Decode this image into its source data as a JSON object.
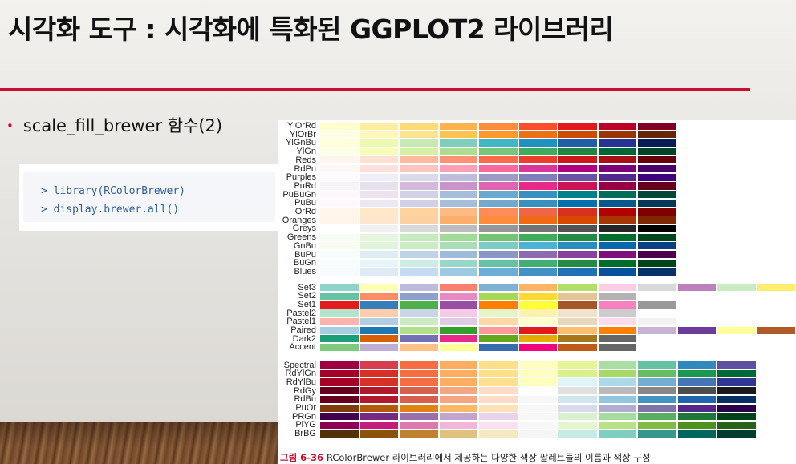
{
  "slide": {
    "title": "시각화 도구 : 시각화에 특화된 GGPLOT2 라이브러리",
    "bullet_marker": "•",
    "bullet_text": "scale_fill_brewer 함수(2)"
  },
  "code": {
    "lines": [
      "> library(RColorBrewer)",
      "> display.brewer.all()"
    ]
  },
  "caption": {
    "number": "그림 6-36",
    "text": "RColorBrewer 라이브러리에서 제공하는 다양한 색상 팔레트들의 이름과 색상 구성"
  },
  "palettes": [
    {
      "name": "YlOrRd",
      "colors": [
        "#ffffcc",
        "#ffeda0",
        "#fed976",
        "#feb24c",
        "#fd8d3c",
        "#fc4e2a",
        "#e31a1c",
        "#bd0026",
        "#800026"
      ]
    },
    {
      "name": "YlOrBr",
      "colors": [
        "#ffffe5",
        "#fff7bc",
        "#fee391",
        "#fec44f",
        "#fe9929",
        "#ec7014",
        "#cc4c02",
        "#993404",
        "#662506"
      ]
    },
    {
      "name": "YlGnBu",
      "colors": [
        "#ffffd9",
        "#edf8b1",
        "#c7e9b4",
        "#7fcdbb",
        "#41b6c4",
        "#1d91c0",
        "#225ea8",
        "#253494",
        "#081d58"
      ]
    },
    {
      "name": "YlGn",
      "colors": [
        "#ffffe5",
        "#f7fcb9",
        "#d9f0a3",
        "#addd8e",
        "#78c679",
        "#41ab5d",
        "#238443",
        "#006837",
        "#004529"
      ]
    },
    {
      "name": "Reds",
      "colors": [
        "#fff5f0",
        "#fee0d2",
        "#fcbba1",
        "#fc9272",
        "#fb6a4a",
        "#ef3b2c",
        "#cb181d",
        "#a50f15",
        "#67000d"
      ]
    },
    {
      "name": "RdPu",
      "colors": [
        "#fff7f3",
        "#fde0dd",
        "#fcc5c0",
        "#fa9fb5",
        "#f768a1",
        "#dd3497",
        "#ae017e",
        "#7a0177",
        "#49006a"
      ]
    },
    {
      "name": "Purples",
      "colors": [
        "#fcfbfd",
        "#efedf5",
        "#dadaeb",
        "#bcbddc",
        "#9e9ac8",
        "#807dba",
        "#6a51a3",
        "#54278f",
        "#3f007d"
      ]
    },
    {
      "name": "PuRd",
      "colors": [
        "#f7f4f9",
        "#e7e1ef",
        "#d4b9da",
        "#c994c7",
        "#df65b0",
        "#e7298a",
        "#ce1256",
        "#980043",
        "#67001f"
      ]
    },
    {
      "name": "PuBuGn",
      "colors": [
        "#fff7fb",
        "#ece2f0",
        "#d0d1e6",
        "#a6bddb",
        "#67a9cf",
        "#3690c0",
        "#02818a",
        "#016c59",
        "#014636"
      ]
    },
    {
      "name": "PuBu",
      "colors": [
        "#fff7fb",
        "#ece7f2",
        "#d0d1e6",
        "#a6bddb",
        "#74a9cf",
        "#3690c0",
        "#0570b0",
        "#045a8d",
        "#023858"
      ]
    },
    {
      "name": "OrRd",
      "colors": [
        "#fff7ec",
        "#fee8c8",
        "#fdd49e",
        "#fdbb84",
        "#fc8d59",
        "#ef6548",
        "#d7301f",
        "#b30000",
        "#7f0000"
      ]
    },
    {
      "name": "Oranges",
      "colors": [
        "#fff5eb",
        "#fee6ce",
        "#fdd0a2",
        "#fdae6b",
        "#fd8d3c",
        "#f16913",
        "#d94801",
        "#a63603",
        "#7f2704"
      ]
    },
    {
      "name": "Greys",
      "colors": [
        "#ffffff",
        "#f0f0f0",
        "#d9d9d9",
        "#bdbdbd",
        "#969696",
        "#737373",
        "#525252",
        "#252525",
        "#000000"
      ]
    },
    {
      "name": "Greens",
      "colors": [
        "#f7fcf5",
        "#e5f5e0",
        "#c7e9c0",
        "#a1d99b",
        "#74c476",
        "#41ab5d",
        "#238b45",
        "#006d2c",
        "#00441b"
      ]
    },
    {
      "name": "GnBu",
      "colors": [
        "#f7fcf0",
        "#e0f3db",
        "#ccebc5",
        "#a8ddb5",
        "#7bccc4",
        "#4eb3d3",
        "#2b8cbe",
        "#0868ac",
        "#084081"
      ]
    },
    {
      "name": "BuPu",
      "colors": [
        "#f7fcfd",
        "#e0ecf4",
        "#bfd3e6",
        "#9ebcda",
        "#8c96c6",
        "#8c6bb1",
        "#88419d",
        "#810f7c",
        "#4d004b"
      ]
    },
    {
      "name": "BuGn",
      "colors": [
        "#f7fcfd",
        "#e5f5f9",
        "#ccece6",
        "#99d8c9",
        "#66c2a4",
        "#41ae76",
        "#238b45",
        "#006d2c",
        "#00441b"
      ]
    },
    {
      "name": "Blues",
      "colors": [
        "#f7fbff",
        "#deebf7",
        "#c6dbef",
        "#9ecae1",
        "#6baed6",
        "#4292c6",
        "#2171b5",
        "#08519c",
        "#08306b"
      ]
    },
    {
      "name": "Set3",
      "colors": [
        "#8dd3c7",
        "#ffffb3",
        "#bebada",
        "#fb8072",
        "#80b1d3",
        "#fdb462",
        "#b3de69",
        "#fccde5",
        "#d9d9d9",
        "#bc80bd",
        "#ccebc5",
        "#ffed6f"
      ]
    },
    {
      "name": "Set2",
      "colors": [
        "#66c2a5",
        "#fc8d62",
        "#8da0cb",
        "#e78ac3",
        "#a6d854",
        "#ffd92f",
        "#e5c494",
        "#b3b3b3"
      ]
    },
    {
      "name": "Set1",
      "colors": [
        "#e41a1c",
        "#377eb8",
        "#4daf4a",
        "#984ea3",
        "#ff7f00",
        "#ffff33",
        "#a65628",
        "#f781bf",
        "#999999"
      ]
    },
    {
      "name": "Pastel2",
      "colors": [
        "#b3e2cd",
        "#fdcdac",
        "#cbd5e8",
        "#f4cae4",
        "#e6f5c9",
        "#fff2ae",
        "#f1e2cc",
        "#cccccc"
      ]
    },
    {
      "name": "Pastel1",
      "colors": [
        "#fbb4ae",
        "#b3cde3",
        "#ccebc5",
        "#decbe4",
        "#fed9a6",
        "#ffffcc",
        "#e5d8bd",
        "#fddaec",
        "#f2f2f2"
      ]
    },
    {
      "name": "Paired",
      "colors": [
        "#a6cee3",
        "#1f78b4",
        "#b2df8a",
        "#33a02c",
        "#fb9a99",
        "#e31a1c",
        "#fdbf6f",
        "#ff7f00",
        "#cab2d6",
        "#6a3d9a",
        "#ffff99",
        "#b15928"
      ]
    },
    {
      "name": "Dark2",
      "colors": [
        "#1b9e77",
        "#d95f02",
        "#7570b3",
        "#e7298a",
        "#66a61e",
        "#e6ab02",
        "#a6761d",
        "#666666"
      ]
    },
    {
      "name": "Accent",
      "colors": [
        "#7fc97f",
        "#beaed4",
        "#fdc086",
        "#ffff99",
        "#386cb0",
        "#f0027f",
        "#bf5b17",
        "#666666"
      ]
    },
    {
      "name": "Spectral",
      "colors": [
        "#9e0142",
        "#d53e4f",
        "#f46d43",
        "#fdae61",
        "#fee08b",
        "#ffffbf",
        "#e6f598",
        "#abdda4",
        "#66c2a5",
        "#3288bd",
        "#5e4fa2"
      ]
    },
    {
      "name": "RdYlGn",
      "colors": [
        "#a50026",
        "#d73027",
        "#f46d43",
        "#fdae61",
        "#fee08b",
        "#ffffbf",
        "#d9ef8b",
        "#a6d96a",
        "#66bd63",
        "#1a9850",
        "#006837"
      ]
    },
    {
      "name": "RdYlBu",
      "colors": [
        "#a50026",
        "#d73027",
        "#f46d43",
        "#fdae61",
        "#fee090",
        "#ffffbf",
        "#e0f3f8",
        "#abd9e9",
        "#74add1",
        "#4575b4",
        "#313695"
      ]
    },
    {
      "name": "RdGy",
      "colors": [
        "#67001f",
        "#b2182b",
        "#d6604d",
        "#f4a582",
        "#fddbc7",
        "#ffffff",
        "#e0e0e0",
        "#bababa",
        "#878787",
        "#4d4d4d",
        "#1a1a1a"
      ]
    },
    {
      "name": "RdBu",
      "colors": [
        "#67001f",
        "#b2182b",
        "#d6604d",
        "#f4a582",
        "#fddbc7",
        "#f7f7f7",
        "#d1e5f0",
        "#92c5de",
        "#4393c3",
        "#2166ac",
        "#053061"
      ]
    },
    {
      "name": "PuOr",
      "colors": [
        "#7f3b08",
        "#b35806",
        "#e08214",
        "#fdb863",
        "#fee0b6",
        "#f7f7f7",
        "#d8daeb",
        "#b2abd2",
        "#8073ac",
        "#542788",
        "#2d004b"
      ]
    },
    {
      "name": "PRGn",
      "colors": [
        "#40004b",
        "#762a83",
        "#9970ab",
        "#c2a5cf",
        "#e7d4e8",
        "#f7f7f7",
        "#d9f0d3",
        "#a6dba0",
        "#5aae61",
        "#1b7837",
        "#00441b"
      ]
    },
    {
      "name": "PiYG",
      "colors": [
        "#8e0152",
        "#c51b7d",
        "#de77ae",
        "#f1b6da",
        "#fde0ef",
        "#f7f7f7",
        "#e6f5d0",
        "#b8e186",
        "#7fbc41",
        "#4d9221",
        "#276419"
      ]
    },
    {
      "name": "BrBG",
      "colors": [
        "#543005",
        "#8c510a",
        "#bf812d",
        "#dfc27d",
        "#f6e8c3",
        "#f5f5f5",
        "#c7eae5",
        "#80cdc1",
        "#35978f",
        "#01665e",
        "#003c30"
      ]
    }
  ]
}
